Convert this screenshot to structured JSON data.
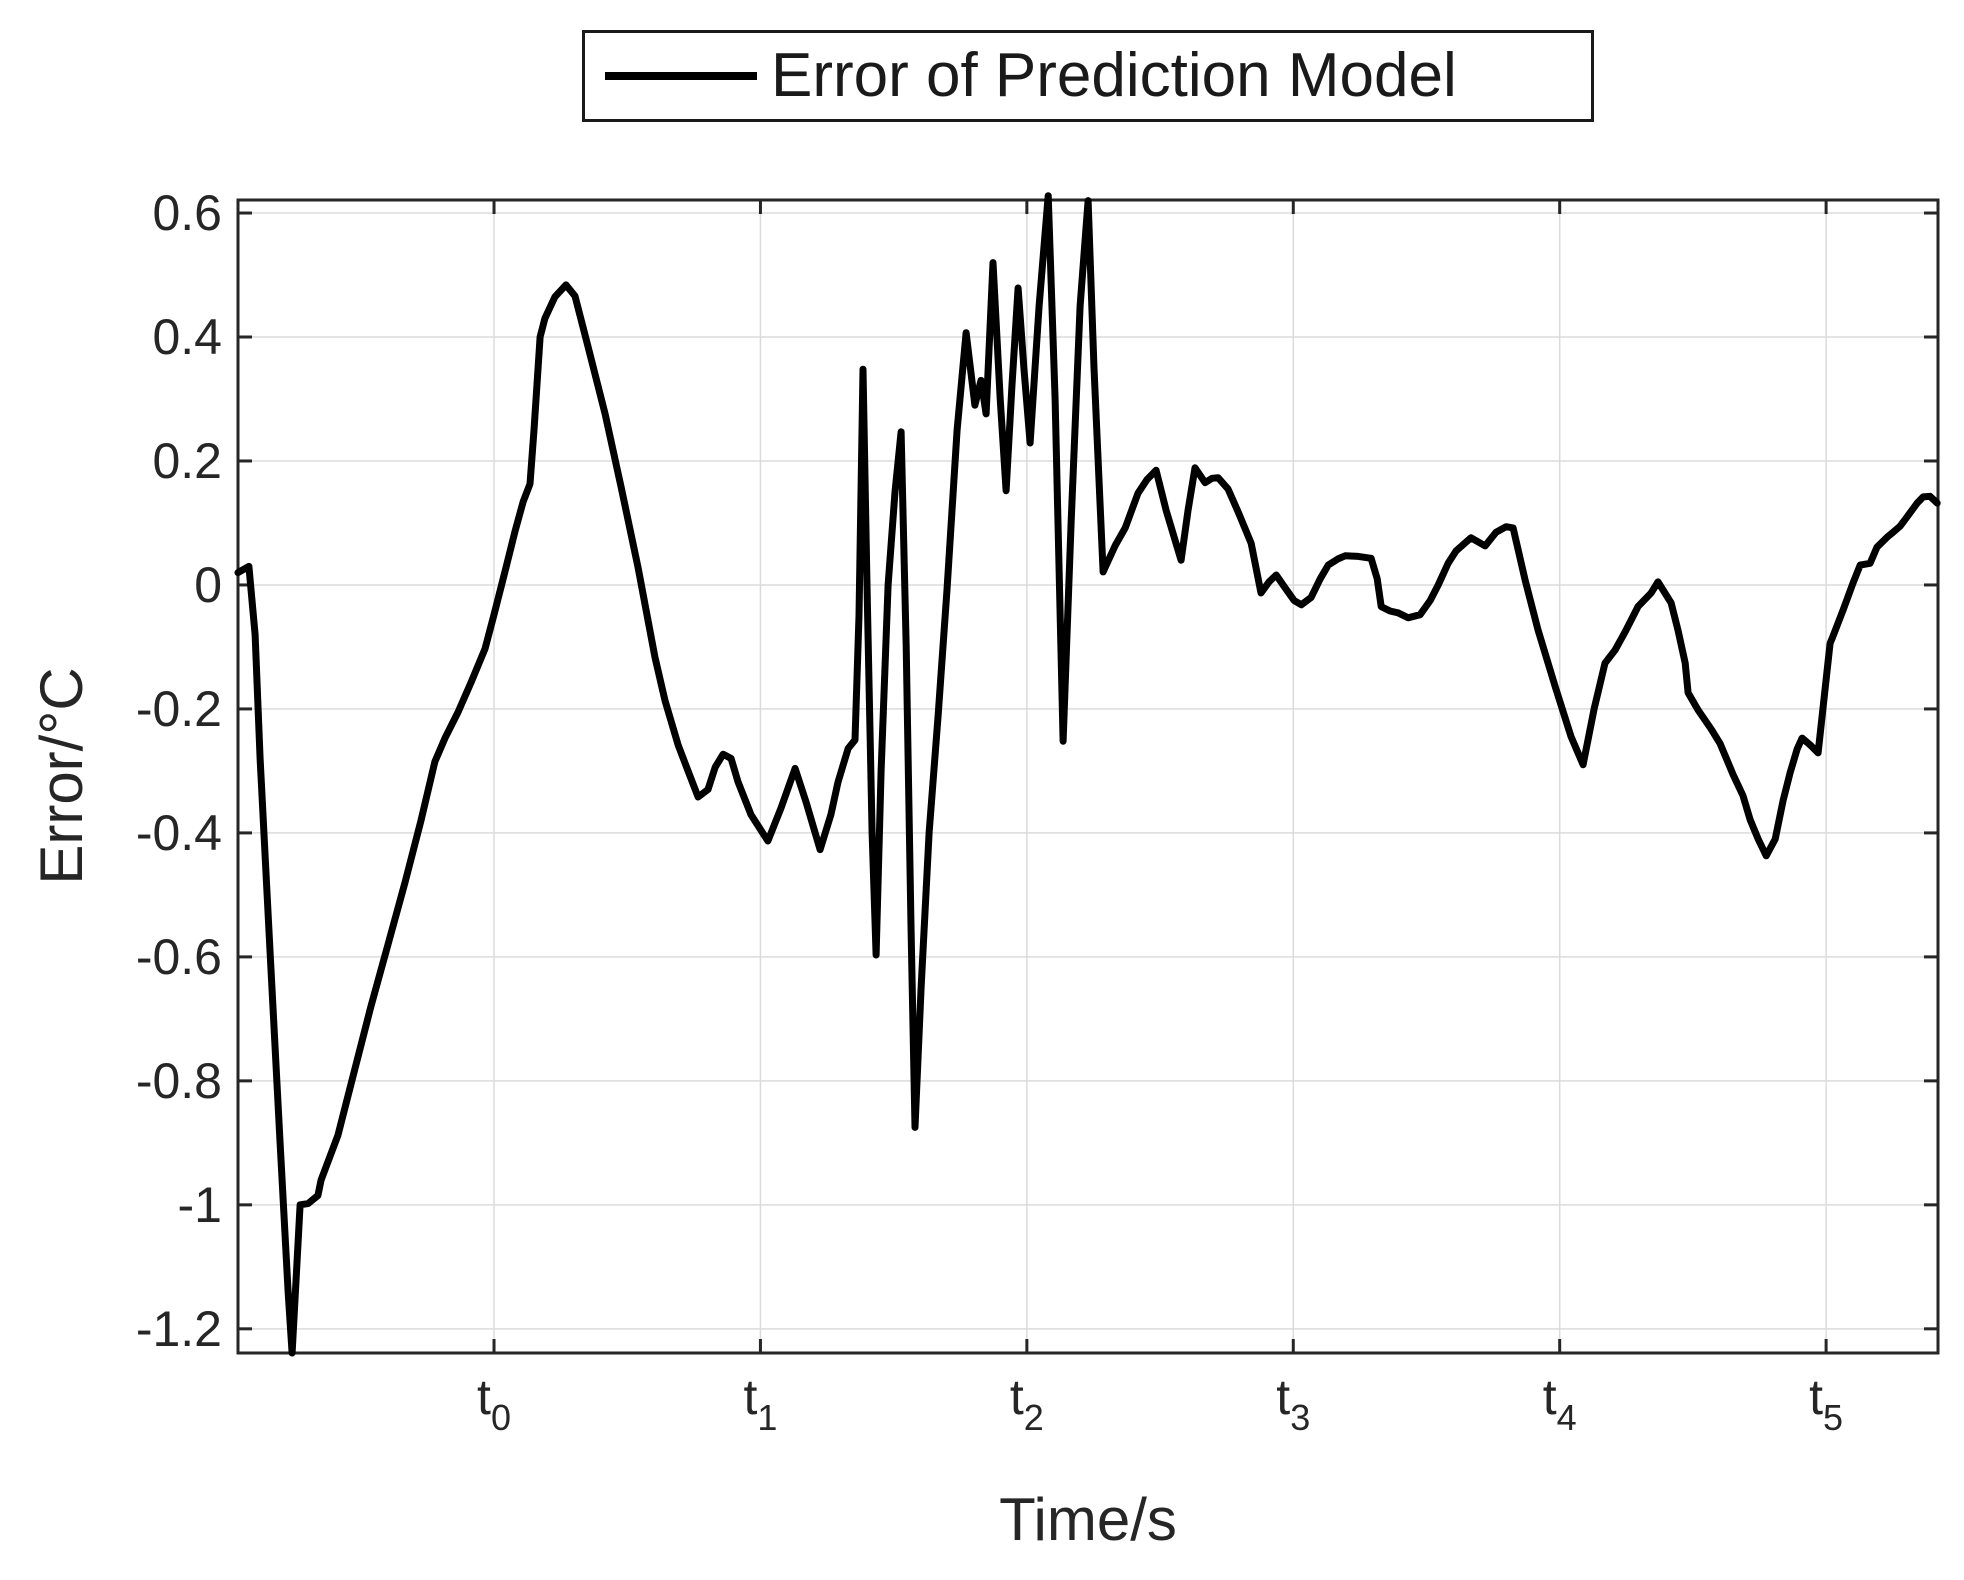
{
  "chart_data": {
    "type": "line",
    "title": "",
    "xlabel": "Time/s",
    "ylabel": "Error/°C",
    "legend_position": "top-center",
    "grid": true,
    "xlim": [
      -0.961,
      5.42
    ],
    "ylim": [
      -1.239,
      0.621
    ],
    "x_ticks": [
      {
        "base": "t",
        "sub": "0",
        "t": 0
      },
      {
        "base": "t",
        "sub": "1",
        "t": 1
      },
      {
        "base": "t",
        "sub": "2",
        "t": 2
      },
      {
        "base": "t",
        "sub": "3",
        "t": 3
      },
      {
        "base": "t",
        "sub": "4",
        "t": 4
      },
      {
        "base": "t",
        "sub": "5",
        "t": 5
      }
    ],
    "y_ticks": [
      0.6,
      0.4,
      0.2,
      0,
      -0.2,
      -0.4,
      -0.6,
      -0.8,
      -1,
      -1.2
    ],
    "y_tick_labels": [
      "0.6",
      "0.4",
      "0.2",
      "0",
      "-0.2",
      "-0.4",
      "-0.6",
      "-0.8",
      "-1",
      "-1.2"
    ],
    "colors": {
      "line": "#000000",
      "grid": "#dbdbdb",
      "axis": "#262626",
      "text": "#262626"
    },
    "series": [
      {
        "name": "Error of Prediction Model",
        "points": [
          [
            -0.961,
            0.02
          ],
          [
            -0.92,
            0.03
          ],
          [
            -0.897,
            -0.08
          ],
          [
            -0.878,
            -0.28
          ],
          [
            -0.841,
            -0.59
          ],
          [
            -0.803,
            -0.9
          ],
          [
            -0.773,
            -1.14
          ],
          [
            -0.758,
            -1.239
          ],
          [
            -0.743,
            -1.12
          ],
          [
            -0.728,
            -1.0
          ],
          [
            -0.698,
            -0.998
          ],
          [
            -0.661,
            -0.985
          ],
          [
            -0.649,
            -0.96
          ],
          [
            -0.586,
            -0.888
          ],
          [
            -0.522,
            -0.78
          ],
          [
            -0.462,
            -0.68
          ],
          [
            -0.398,
            -0.58
          ],
          [
            -0.334,
            -0.48
          ],
          [
            -0.274,
            -0.38
          ],
          [
            -0.222,
            -0.285
          ],
          [
            -0.184,
            -0.247
          ],
          [
            -0.135,
            -0.205
          ],
          [
            -0.086,
            -0.157
          ],
          [
            -0.034,
            -0.103
          ],
          [
            0,
            -0.048
          ],
          [
            0.041,
            0.021
          ],
          [
            0.079,
            0.087
          ],
          [
            0.109,
            0.134
          ],
          [
            0.135,
            0.163
          ],
          [
            0.15,
            0.25
          ],
          [
            0.173,
            0.4
          ],
          [
            0.191,
            0.43
          ],
          [
            0.229,
            0.465
          ],
          [
            0.27,
            0.484
          ],
          [
            0.304,
            0.466
          ],
          [
            0.353,
            0.384
          ],
          [
            0.417,
            0.276
          ],
          [
            0.477,
            0.158
          ],
          [
            0.541,
            0.027
          ],
          [
            0.604,
            -0.116
          ],
          [
            0.642,
            -0.187
          ],
          [
            0.691,
            -0.258
          ],
          [
            0.728,
            -0.3
          ],
          [
            0.766,
            -0.342
          ],
          [
            0.803,
            -0.33
          ],
          [
            0.83,
            -0.294
          ],
          [
            0.86,
            -0.273
          ],
          [
            0.89,
            -0.28
          ],
          [
            0.916,
            -0.318
          ],
          [
            0.965,
            -0.371
          ],
          [
            1.028,
            -0.413
          ],
          [
            1.077,
            -0.36
          ],
          [
            1.13,
            -0.296
          ],
          [
            1.171,
            -0.35
          ],
          [
            1.224,
            -0.427
          ],
          [
            1.265,
            -0.37
          ],
          [
            1.291,
            -0.318
          ],
          [
            1.329,
            -0.264
          ],
          [
            1.355,
            -0.25
          ],
          [
            1.37,
            -0.05
          ],
          [
            1.385,
            0.348
          ],
          [
            1.4,
            0
          ],
          [
            1.419,
            -0.4
          ],
          [
            1.434,
            -0.597
          ],
          [
            1.453,
            -0.3
          ],
          [
            1.479,
            0
          ],
          [
            1.505,
            0.15
          ],
          [
            1.528,
            0.247
          ],
          [
            1.547,
            -0.1
          ],
          [
            1.565,
            -0.55
          ],
          [
            1.58,
            -0.875
          ],
          [
            1.603,
            -0.65
          ],
          [
            1.633,
            -0.4
          ],
          [
            1.667,
            -0.211
          ],
          [
            1.7,
            -0.01
          ],
          [
            1.738,
            0.25
          ],
          [
            1.772,
            0.407
          ],
          [
            1.805,
            0.29
          ],
          [
            1.828,
            0.33
          ],
          [
            1.847,
            0.276
          ],
          [
            1.873,
            0.52
          ],
          [
            1.9,
            0.3
          ],
          [
            1.922,
            0.152
          ],
          [
            1.944,
            0.32
          ],
          [
            1.967,
            0.479
          ],
          [
            1.989,
            0.35
          ],
          [
            2.012,
            0.229
          ],
          [
            2.046,
            0.45
          ],
          [
            2.08,
            0.628
          ],
          [
            2.106,
            0.3
          ],
          [
            2.136,
            -0.252
          ],
          [
            2.166,
            0.1
          ],
          [
            2.2,
            0.45
          ],
          [
            2.23,
            0.62
          ],
          [
            2.252,
            0.35
          ],
          [
            2.286,
            0.021
          ],
          [
            2.331,
            0.063
          ],
          [
            2.369,
            0.092
          ],
          [
            2.417,
            0.148
          ],
          [
            2.451,
            0.17
          ],
          [
            2.485,
            0.185
          ],
          [
            2.523,
            0.12
          ],
          [
            2.579,
            0.04
          ],
          [
            2.605,
            0.12
          ],
          [
            2.631,
            0.189
          ],
          [
            2.669,
            0.165
          ],
          [
            2.695,
            0.172
          ],
          [
            2.718,
            0.173
          ],
          [
            2.755,
            0.155
          ],
          [
            2.793,
            0.118
          ],
          [
            2.842,
            0.067
          ],
          [
            2.879,
            -0.013
          ],
          [
            2.909,
            0.005
          ],
          [
            2.936,
            0.016
          ],
          [
            2.97,
            -0.005
          ],
          [
            3.003,
            -0.025
          ],
          [
            3.03,
            -0.032
          ],
          [
            3.067,
            -0.02
          ],
          [
            3.101,
            0.01
          ],
          [
            3.131,
            0.032
          ],
          [
            3.168,
            0.042
          ],
          [
            3.195,
            0.047
          ],
          [
            3.244,
            0.046
          ],
          [
            3.292,
            0.043
          ],
          [
            3.315,
            0.01
          ],
          [
            3.33,
            -0.035
          ],
          [
            3.363,
            -0.042
          ],
          [
            3.393,
            -0.045
          ],
          [
            3.431,
            -0.053
          ],
          [
            3.476,
            -0.048
          ],
          [
            3.514,
            -0.025
          ],
          [
            3.544,
            0
          ],
          [
            3.581,
            0.035
          ],
          [
            3.611,
            0.055
          ],
          [
            3.667,
            0.076
          ],
          [
            3.72,
            0.063
          ],
          [
            3.761,
            0.085
          ],
          [
            3.799,
            0.094
          ],
          [
            3.825,
            0.092
          ],
          [
            3.87,
            0.008
          ],
          [
            3.919,
            -0.073
          ],
          [
            3.983,
            -0.164
          ],
          [
            4.043,
            -0.245
          ],
          [
            4.088,
            -0.29
          ],
          [
            4.129,
            -0.2
          ],
          [
            4.17,
            -0.126
          ],
          [
            4.208,
            -0.105
          ],
          [
            4.245,
            -0.076
          ],
          [
            4.294,
            -0.035
          ],
          [
            4.343,
            -0.013
          ],
          [
            4.369,
            0.005
          ],
          [
            4.418,
            -0.029
          ],
          [
            4.444,
            -0.073
          ],
          [
            4.471,
            -0.126
          ],
          [
            4.482,
            -0.174
          ],
          [
            4.52,
            -0.202
          ],
          [
            4.568,
            -0.232
          ],
          [
            4.602,
            -0.256
          ],
          [
            4.651,
            -0.306
          ],
          [
            4.688,
            -0.34
          ],
          [
            4.715,
            -0.379
          ],
          [
            4.745,
            -0.41
          ],
          [
            4.775,
            -0.437
          ],
          [
            4.809,
            -0.41
          ],
          [
            4.839,
            -0.347
          ],
          [
            4.865,
            -0.303
          ],
          [
            4.891,
            -0.265
          ],
          [
            4.91,
            -0.247
          ],
          [
            4.94,
            -0.258
          ],
          [
            4.97,
            -0.271
          ],
          [
            4.996,
            -0.169
          ],
          [
            5.015,
            -0.094
          ],
          [
            5.023,
            -0.086
          ],
          [
            5.064,
            -0.04
          ],
          [
            5.101,
            0.003
          ],
          [
            5.128,
            0.032
          ],
          [
            5.165,
            0.035
          ],
          [
            5.191,
            0.061
          ],
          [
            5.229,
            0.077
          ],
          [
            5.251,
            0.085
          ],
          [
            5.278,
            0.095
          ],
          [
            5.304,
            0.11
          ],
          [
            5.342,
            0.132
          ],
          [
            5.364,
            0.142
          ],
          [
            5.39,
            0.143
          ],
          [
            5.417,
            0.132
          ]
        ]
      }
    ]
  }
}
